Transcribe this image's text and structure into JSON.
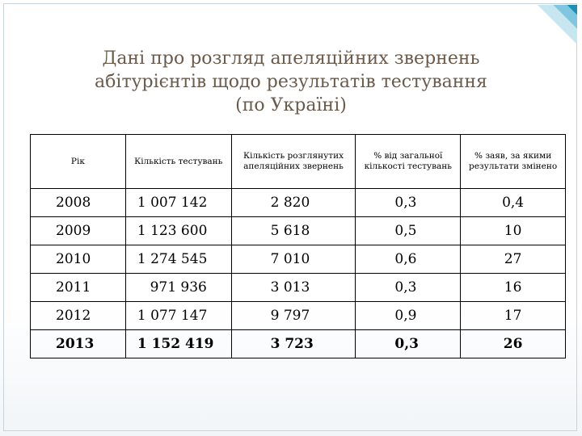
{
  "title": {
    "line1": "Дані про розгляд апеляційних звернень",
    "line2": "абітурієнтів щодо результатів тестування",
    "line3": "(по Україні)"
  },
  "table": {
    "headers": [
      "Рік",
      "Кількість тестувань",
      "Кількість розглянутих апеляційних звернень",
      "% від загальної кількості тестувань",
      "% заяв, за якими результати змінено"
    ],
    "rows": [
      [
        "2008",
        "1 007 142",
        "2 820",
        "0,3",
        "0,4"
      ],
      [
        "2009",
        "1 123 600",
        "5 618",
        "0,5",
        "10"
      ],
      [
        "2010",
        "1 274 545",
        "7 010",
        "0,6",
        "27"
      ],
      [
        "2011",
        "971 936",
        "3 013",
        "0,3",
        "16"
      ],
      [
        "2012",
        "1 077 147",
        "9 797",
        "0,9",
        "17"
      ],
      [
        "2013",
        "1 152 419",
        "3 723",
        "0,3",
        "26"
      ]
    ]
  },
  "colors": {
    "title": "#6b5a4a",
    "accent": "#1a8fb8"
  }
}
